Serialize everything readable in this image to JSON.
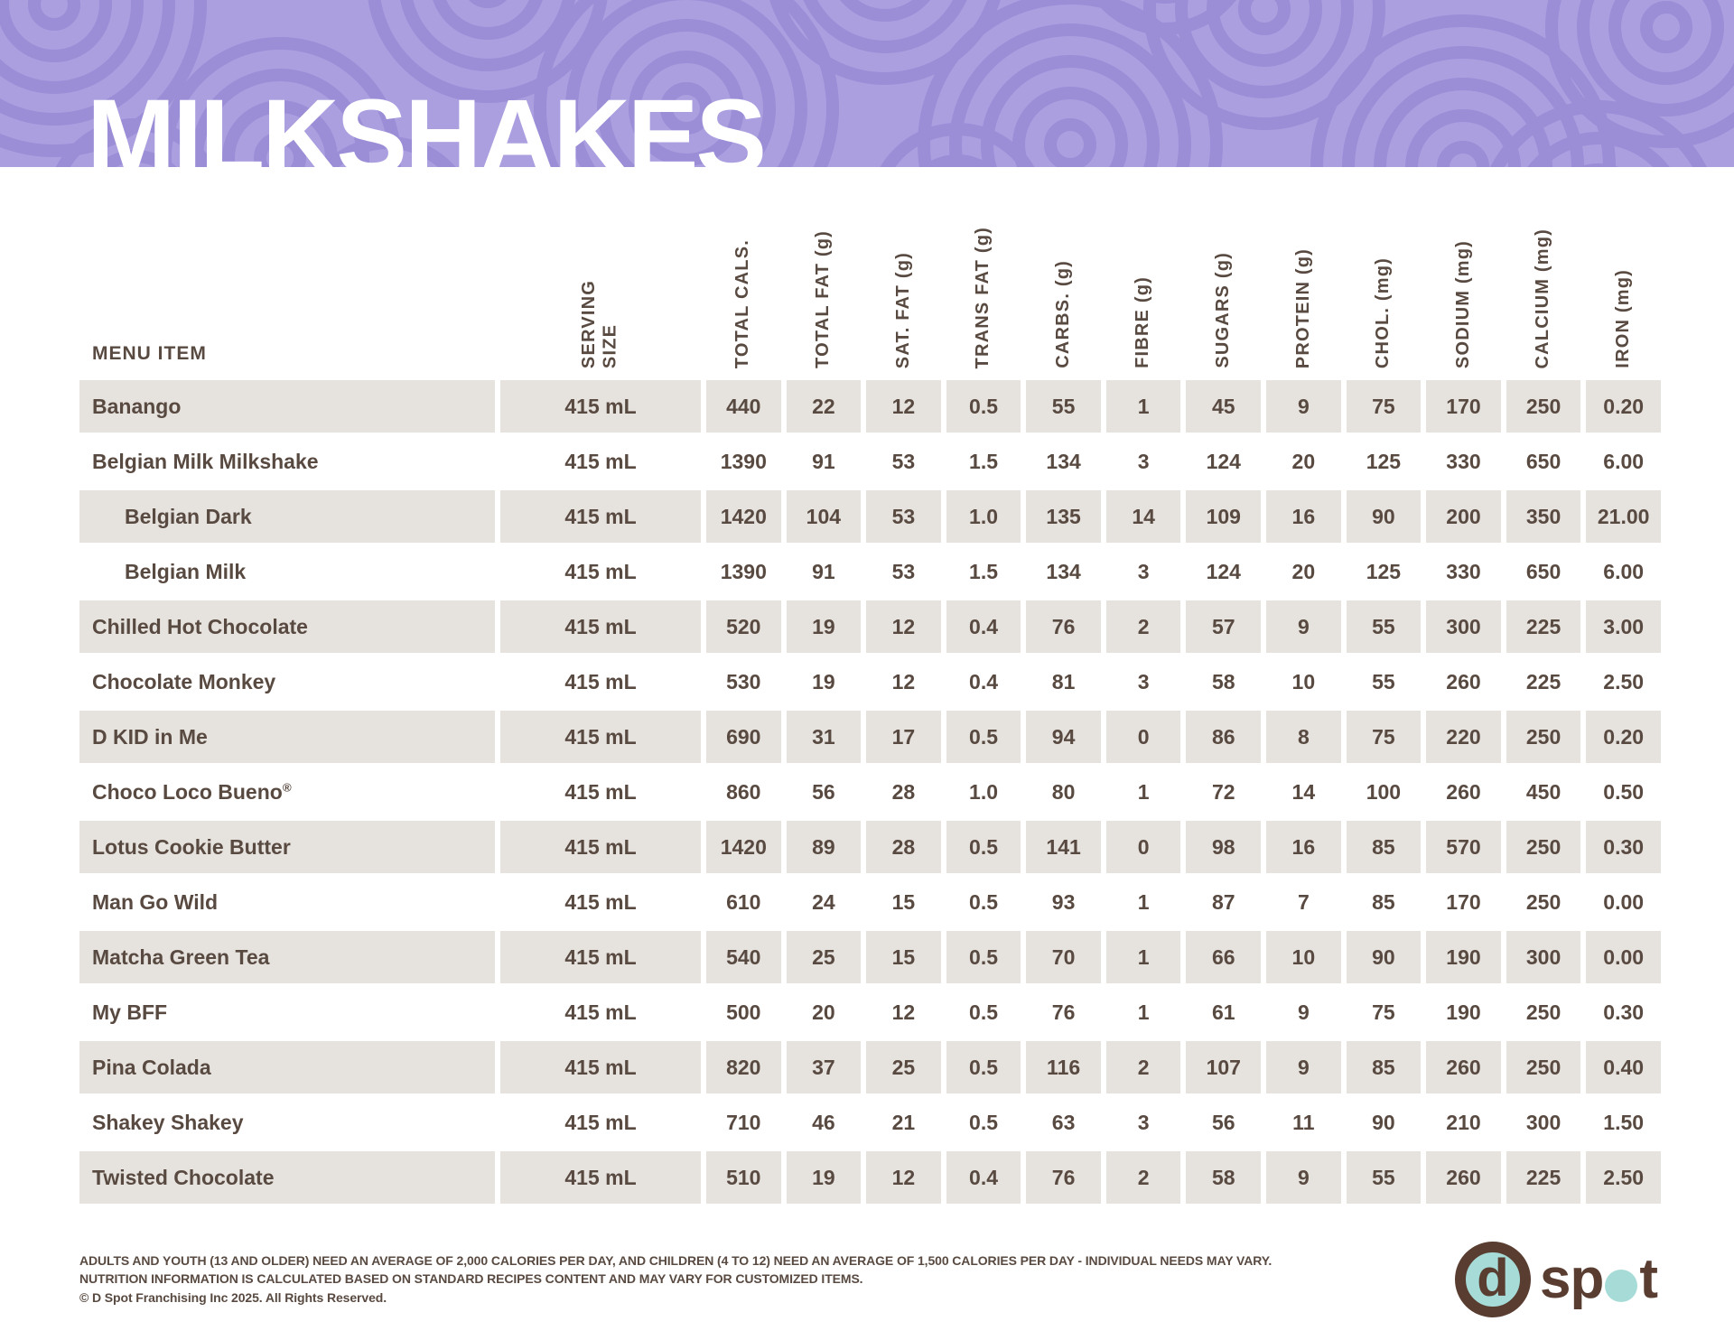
{
  "header": {
    "title": "MILKSHAKES"
  },
  "colors": {
    "banner_base": "#ab9fe0",
    "banner_rings": "#9b8dd6",
    "text_brown": "#594a41",
    "row_shade": "#e6e2de",
    "logo_brown": "#583d30",
    "logo_teal": "#a6dbd8"
  },
  "table": {
    "menu_item_header": "MENU ITEM",
    "columns": [
      {
        "id": "serving-size",
        "label": "SERVING\nSIZE"
      },
      {
        "id": "total-cals",
        "label": "TOTAL CALS."
      },
      {
        "id": "total-fat",
        "label": "TOTAL FAT (g)"
      },
      {
        "id": "sat-fat",
        "label": "SAT. FAT (g)"
      },
      {
        "id": "trans-fat",
        "label": "TRANS FAT (g)"
      },
      {
        "id": "carbs",
        "label": "CARBS. (g)"
      },
      {
        "id": "fibre",
        "label": "FIBRE (g)"
      },
      {
        "id": "sugars",
        "label": "SUGARS (g)"
      },
      {
        "id": "protein",
        "label": "PROTEIN (g)"
      },
      {
        "id": "chol",
        "label": "CHOL. (mg)"
      },
      {
        "id": "sodium",
        "label": "SODIUM (mg)"
      },
      {
        "id": "calcium",
        "label": "CALCIUM (mg)"
      },
      {
        "id": "iron",
        "label": "IRON (mg)"
      }
    ],
    "rows": [
      {
        "name": "Banango",
        "sub": false,
        "reg": false,
        "values": [
          "415 mL",
          "440",
          "22",
          "12",
          "0.5",
          "55",
          "1",
          "45",
          "9",
          "75",
          "170",
          "250",
          "0.20"
        ]
      },
      {
        "name": "Belgian Milk Milkshake",
        "sub": false,
        "reg": false,
        "values": [
          "415 mL",
          "1390",
          "91",
          "53",
          "1.5",
          "134",
          "3",
          "124",
          "20",
          "125",
          "330",
          "650",
          "6.00"
        ]
      },
      {
        "name": "Belgian Dark",
        "sub": true,
        "reg": false,
        "values": [
          "415 mL",
          "1420",
          "104",
          "53",
          "1.0",
          "135",
          "14",
          "109",
          "16",
          "90",
          "200",
          "350",
          "21.00"
        ]
      },
      {
        "name": "Belgian Milk",
        "sub": true,
        "reg": false,
        "values": [
          "415 mL",
          "1390",
          "91",
          "53",
          "1.5",
          "134",
          "3",
          "124",
          "20",
          "125",
          "330",
          "650",
          "6.00"
        ]
      },
      {
        "name": "Chilled Hot Chocolate",
        "sub": false,
        "reg": false,
        "values": [
          "415 mL",
          "520",
          "19",
          "12",
          "0.4",
          "76",
          "2",
          "57",
          "9",
          "55",
          "300",
          "225",
          "3.00"
        ]
      },
      {
        "name": "Chocolate Monkey",
        "sub": false,
        "reg": false,
        "values": [
          "415 mL",
          "530",
          "19",
          "12",
          "0.4",
          "81",
          "3",
          "58",
          "10",
          "55",
          "260",
          "225",
          "2.50"
        ]
      },
      {
        "name": "D KID in Me",
        "sub": false,
        "reg": false,
        "values": [
          "415 mL",
          "690",
          "31",
          "17",
          "0.5",
          "94",
          "0",
          "86",
          "8",
          "75",
          "220",
          "250",
          "0.20"
        ]
      },
      {
        "name": "Choco Loco Bueno",
        "sub": false,
        "reg": true,
        "values": [
          "415 mL",
          "860",
          "56",
          "28",
          "1.0",
          "80",
          "1",
          "72",
          "14",
          "100",
          "260",
          "450",
          "0.50"
        ]
      },
      {
        "name": "Lotus Cookie Butter",
        "sub": false,
        "reg": false,
        "values": [
          "415 mL",
          "1420",
          "89",
          "28",
          "0.5",
          "141",
          "0",
          "98",
          "16",
          "85",
          "570",
          "250",
          "0.30"
        ]
      },
      {
        "name": "Man Go Wild",
        "sub": false,
        "reg": false,
        "values": [
          "415 mL",
          "610",
          "24",
          "15",
          "0.5",
          "93",
          "1",
          "87",
          "7",
          "85",
          "170",
          "250",
          "0.00"
        ]
      },
      {
        "name": "Matcha Green Tea",
        "sub": false,
        "reg": false,
        "values": [
          "415 mL",
          "540",
          "25",
          "15",
          "0.5",
          "70",
          "1",
          "66",
          "10",
          "90",
          "190",
          "300",
          "0.00"
        ]
      },
      {
        "name": "My BFF",
        "sub": false,
        "reg": false,
        "values": [
          "415 mL",
          "500",
          "20",
          "12",
          "0.5",
          "76",
          "1",
          "61",
          "9",
          "75",
          "190",
          "250",
          "0.30"
        ]
      },
      {
        "name": "Pina Colada",
        "sub": false,
        "reg": false,
        "values": [
          "415 mL",
          "820",
          "37",
          "25",
          "0.5",
          "116",
          "2",
          "107",
          "9",
          "85",
          "260",
          "250",
          "0.40"
        ]
      },
      {
        "name": "Shakey Shakey",
        "sub": false,
        "reg": false,
        "values": [
          "415 mL",
          "710",
          "46",
          "21",
          "0.5",
          "63",
          "3",
          "56",
          "11",
          "90",
          "210",
          "300",
          "1.50"
        ]
      },
      {
        "name": "Twisted Chocolate",
        "sub": false,
        "reg": false,
        "values": [
          "415 mL",
          "510",
          "19",
          "12",
          "0.4",
          "76",
          "2",
          "58",
          "9",
          "55",
          "260",
          "225",
          "2.50"
        ]
      }
    ],
    "reg_symbol": "®"
  },
  "footer": {
    "line1": "ADULTS AND YOUTH (13 AND OLDER) NEED AN AVERAGE OF 2,000 CALORIES PER DAY, AND CHILDREN (4 TO 12) NEED AN AVERAGE OF 1,500 CALORIES PER DAY - INDIVIDUAL NEEDS MAY VARY.",
    "line2": "NUTRITION INFORMATION IS CALCULATED BASED ON STANDARD RECIPES CONTENT AND MAY VARY FOR CUSTOMIZED ITEMS.",
    "line3": "© D Spot Franchising Inc 2025. All Rights Reserved."
  },
  "logo": {
    "d": "d",
    "sp": "sp",
    "o": "o",
    "t": "t"
  }
}
